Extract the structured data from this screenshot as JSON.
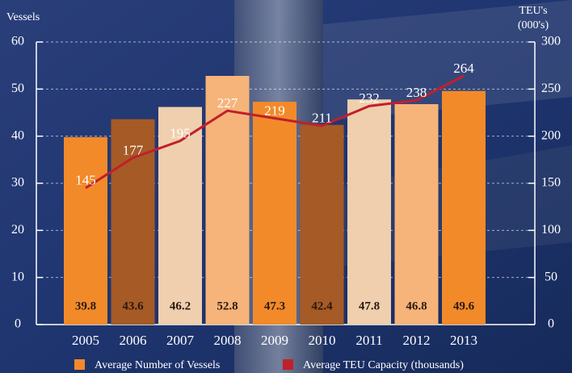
{
  "chart_data": {
    "type": "bar-line",
    "ylabel": "Vessels",
    "y2label": [
      "TEU's",
      "(000's)"
    ],
    "categories": [
      "2005",
      "2006",
      "2007",
      "2008",
      "2009",
      "2010",
      "2011",
      "2012",
      "2013"
    ],
    "series": [
      {
        "name": "Average Number of Vessels",
        "type": "bar",
        "color": "#f28a2a",
        "colors": [
          "#f28a2a",
          "#a65a26",
          "#efcfae",
          "#f6b47a",
          "#f28a2a",
          "#a65a26",
          "#efcfae",
          "#f6b47a",
          "#f28a2a"
        ],
        "values": [
          39.8,
          43.6,
          46.2,
          52.8,
          47.3,
          42.4,
          47.8,
          46.8,
          49.6
        ]
      },
      {
        "name": "Average TEU Capacity (thousands)",
        "type": "line",
        "axis": "y2",
        "color": "#c0202a",
        "values": [
          145,
          177,
          195,
          227,
          219,
          211,
          232,
          238,
          264
        ]
      }
    ],
    "ylim": [
      0,
      60
    ],
    "yticks": [
      0,
      10,
      20,
      30,
      40,
      50,
      60
    ],
    "y2lim": [
      0,
      300
    ],
    "y2ticks": [
      0,
      50,
      100,
      150,
      200,
      250,
      300
    ],
    "grid": true
  }
}
